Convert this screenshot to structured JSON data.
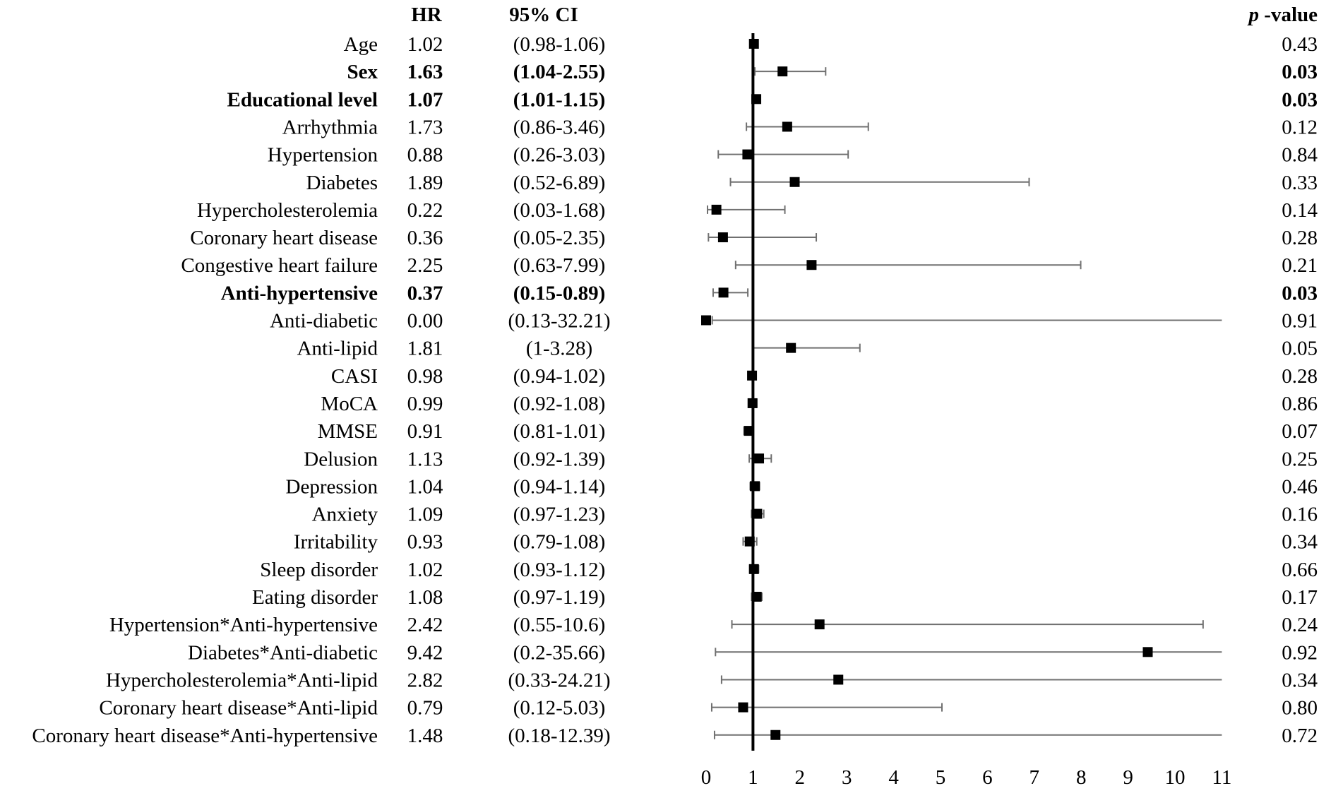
{
  "chart_data": {
    "type": "forest",
    "headers": {
      "hr": "HR",
      "ci": "95% CI",
      "p_italic": "p",
      "p_rest": " -value"
    },
    "reference_line": 1,
    "xlim": [
      0,
      11
    ],
    "xticks": [
      0,
      1,
      2,
      3,
      4,
      5,
      6,
      7,
      8,
      9,
      10,
      11
    ],
    "rows": [
      {
        "label": "Age",
        "hr": "1.02",
        "ci": "(0.98-1.06)",
        "p": "0.43",
        "est": 1.02,
        "lo": 0.98,
        "hi": 1.06,
        "bold": false
      },
      {
        "label": "Sex",
        "hr": "1.63",
        "ci": "(1.04-2.55)",
        "p": "0.03",
        "est": 1.63,
        "lo": 1.04,
        "hi": 2.55,
        "bold": true
      },
      {
        "label": "Educational level",
        "hr": "1.07",
        "ci": "(1.01-1.15)",
        "p": "0.03",
        "est": 1.07,
        "lo": 1.01,
        "hi": 1.15,
        "bold": true
      },
      {
        "label": "Arrhythmia",
        "hr": "1.73",
        "ci": "(0.86-3.46)",
        "p": "0.12",
        "est": 1.73,
        "lo": 0.86,
        "hi": 3.46,
        "bold": false
      },
      {
        "label": "Hypertension",
        "hr": "0.88",
        "ci": "(0.26-3.03)",
        "p": "0.84",
        "est": 0.88,
        "lo": 0.26,
        "hi": 3.03,
        "bold": false
      },
      {
        "label": "Diabetes",
        "hr": "1.89",
        "ci": "(0.52-6.89)",
        "p": "0.33",
        "est": 1.89,
        "lo": 0.52,
        "hi": 6.89,
        "bold": false
      },
      {
        "label": "Hypercholesterolemia",
        "hr": "0.22",
        "ci": "(0.03-1.68)",
        "p": "0.14",
        "est": 0.22,
        "lo": 0.03,
        "hi": 1.68,
        "bold": false
      },
      {
        "label": "Coronary heart disease",
        "hr": "0.36",
        "ci": "(0.05-2.35)",
        "p": "0.28",
        "est": 0.36,
        "lo": 0.05,
        "hi": 2.35,
        "bold": false
      },
      {
        "label": "Congestive heart failure",
        "hr": "2.25",
        "ci": "(0.63-7.99)",
        "p": "0.21",
        "est": 2.25,
        "lo": 0.63,
        "hi": 7.99,
        "bold": false
      },
      {
        "label": "Anti-hypertensive",
        "hr": "0.37",
        "ci": "(0.15-0.89)",
        "p": "0.03",
        "est": 0.37,
        "lo": 0.15,
        "hi": 0.89,
        "bold": true
      },
      {
        "label": "Anti-diabetic",
        "hr": "0.00",
        "ci": "(0.13-32.21)",
        "p": "0.91",
        "est": 0.0,
        "lo": 0.13,
        "hi": 32.21,
        "bold": false
      },
      {
        "label": "Anti-lipid",
        "hr": "1.81",
        "ci": "(1-3.28)",
        "p": "0.05",
        "est": 1.81,
        "lo": 1.0,
        "hi": 3.28,
        "bold": false
      },
      {
        "label": "CASI",
        "hr": "0.98",
        "ci": "(0.94-1.02)",
        "p": "0.28",
        "est": 0.98,
        "lo": 0.94,
        "hi": 1.02,
        "bold": false
      },
      {
        "label": "MoCA",
        "hr": "0.99",
        "ci": "(0.92-1.08)",
        "p": "0.86",
        "est": 0.99,
        "lo": 0.92,
        "hi": 1.08,
        "bold": false
      },
      {
        "label": "MMSE",
        "hr": "0.91",
        "ci": "(0.81-1.01)",
        "p": "0.07",
        "est": 0.91,
        "lo": 0.81,
        "hi": 1.01,
        "bold": false
      },
      {
        "label": "Delusion",
        "hr": "1.13",
        "ci": "(0.92-1.39)",
        "p": "0.25",
        "est": 1.13,
        "lo": 0.92,
        "hi": 1.39,
        "bold": false
      },
      {
        "label": "Depression",
        "hr": "1.04",
        "ci": "(0.94-1.14)",
        "p": "0.46",
        "est": 1.04,
        "lo": 0.94,
        "hi": 1.14,
        "bold": false
      },
      {
        "label": "Anxiety",
        "hr": "1.09",
        "ci": "(0.97-1.23)",
        "p": "0.16",
        "est": 1.09,
        "lo": 0.97,
        "hi": 1.23,
        "bold": false
      },
      {
        "label": "Irritability",
        "hr": "0.93",
        "ci": "(0.79-1.08)",
        "p": "0.34",
        "est": 0.93,
        "lo": 0.79,
        "hi": 1.08,
        "bold": false
      },
      {
        "label": "Sleep disorder",
        "hr": "1.02",
        "ci": "(0.93-1.12)",
        "p": "0.66",
        "est": 1.02,
        "lo": 0.93,
        "hi": 1.12,
        "bold": false
      },
      {
        "label": "Eating disorder",
        "hr": "1.08",
        "ci": "(0.97-1.19)",
        "p": "0.17",
        "est": 1.08,
        "lo": 0.97,
        "hi": 1.19,
        "bold": false
      },
      {
        "label": "Hypertension*Anti-hypertensive",
        "hr": "2.42",
        "ci": "(0.55-10.6)",
        "p": "0.24",
        "est": 2.42,
        "lo": 0.55,
        "hi": 10.6,
        "bold": false
      },
      {
        "label": "Diabetes*Anti-diabetic",
        "hr": "9.42",
        "ci": "(0.2-35.66)",
        "p": "0.92",
        "est": 9.42,
        "lo": 0.2,
        "hi": 35.66,
        "bold": false
      },
      {
        "label": "Hypercholesterolemia*Anti-lipid",
        "hr": "2.82",
        "ci": "(0.33-24.21)",
        "p": "0.34",
        "est": 2.82,
        "lo": 0.33,
        "hi": 24.21,
        "bold": false
      },
      {
        "label": "Coronary heart disease*Anti-lipid",
        "hr": "0.79",
        "ci": "(0.12-5.03)",
        "p": "0.80",
        "est": 0.79,
        "lo": 0.12,
        "hi": 5.03,
        "bold": false
      },
      {
        "label": "Coronary heart disease*Anti-hypertensive",
        "hr": "1.48",
        "ci": "(0.18-12.39)",
        "p": "0.72",
        "est": 1.48,
        "lo": 0.18,
        "hi": 12.39,
        "bold": false
      }
    ],
    "colors": {
      "whisker": "#707070",
      "marker": "#000000",
      "reference": "#000000",
      "text": "#000000"
    }
  }
}
